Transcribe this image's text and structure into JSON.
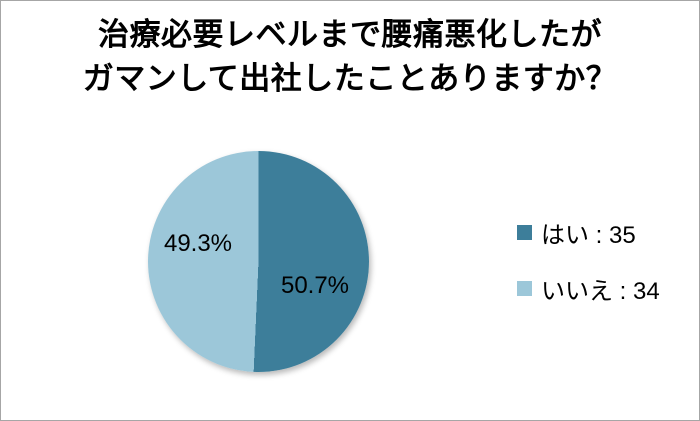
{
  "chart_data": {
    "type": "pie",
    "title": "治療必要レベルまで腰痛悪化したがガマンして出社したことありますか？",
    "title_lines": [
      "治療必要レベルまで腰痛悪化したが",
      "ガマンして出社したことありますか？"
    ],
    "start_angle_deg": 0,
    "legend_position": "right",
    "slices": [
      {
        "label": "はい",
        "value": 35,
        "percent": 50.7,
        "percent_label": "50.7%",
        "legend_text": "はい : 35",
        "color": "#3d7e9a"
      },
      {
        "label": "いいえ",
        "value": 34,
        "percent": 49.3,
        "percent_label": "49.3%",
        "legend_text": "いいえ : 34",
        "color": "#9cc7d9"
      }
    ]
  }
}
